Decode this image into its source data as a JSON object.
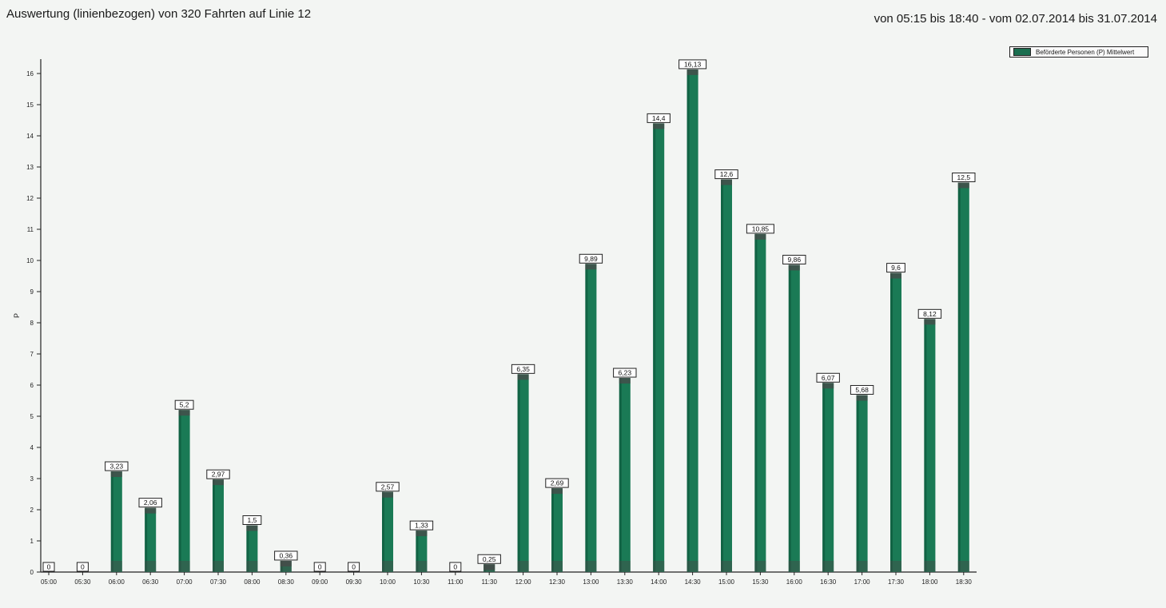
{
  "header": {
    "title": "Auswertung (linienbezogen) von 320 Fahrten auf Linie 12",
    "period": "von 05:15 bis 18:40 - vom 02.07.2014 bis 31.07.2014"
  },
  "legend": {
    "label": "Beförderte Personen (P) Mittelwert"
  },
  "colors": {
    "bar": "#1a7a55",
    "bar_dark": "#0e5a3d",
    "bar_shadow": "#4a4a4a",
    "axis": "#222222"
  },
  "chart_data": {
    "type": "bar",
    "title": "Auswertung (linienbezogen) von 320 Fahrten auf Linie 12",
    "xlabel": "",
    "ylabel": "P",
    "ylim": [
      0,
      16.4
    ],
    "yticks": [
      0,
      1,
      2,
      3,
      4,
      5,
      6,
      7,
      8,
      9,
      10,
      11,
      12,
      13,
      14,
      15,
      16
    ],
    "legend_position": "top-right",
    "grid": false,
    "categories": [
      "05:00",
      "05:30",
      "06:00",
      "06:30",
      "07:00",
      "07:30",
      "08:00",
      "08:30",
      "09:00",
      "09:30",
      "10:00",
      "10:30",
      "11:00",
      "11:30",
      "12:00",
      "12:30",
      "13:00",
      "13:30",
      "14:00",
      "14:30",
      "15:00",
      "15:30",
      "16:00",
      "16:30",
      "17:00",
      "17:30",
      "18:00",
      "18:30"
    ],
    "series": [
      {
        "name": "Beförderte Personen (P) Mittelwert",
        "values": [
          0,
          0,
          3.23,
          2.06,
          5.2,
          2.97,
          1.5,
          0.36,
          0,
          0,
          2.57,
          1.33,
          0,
          0.25,
          6.35,
          2.69,
          9.89,
          6.23,
          14.4,
          16.13,
          12.6,
          10.85,
          9.86,
          6.07,
          5.68,
          9.6,
          8.12,
          12.5
        ],
        "labels": [
          "0",
          "0",
          "3,23",
          "2,06",
          "5,2",
          "2,97",
          "1,5",
          "0,36",
          "0",
          "0",
          "2,57",
          "1,33",
          "0",
          "0,25",
          "6,35",
          "2,69",
          "9,89",
          "6,23",
          "14,4",
          "16,13",
          "12,6",
          "10,85",
          "9,86",
          "6,07",
          "5,68",
          "9,6",
          "8,12",
          "12,5"
        ]
      }
    ]
  }
}
